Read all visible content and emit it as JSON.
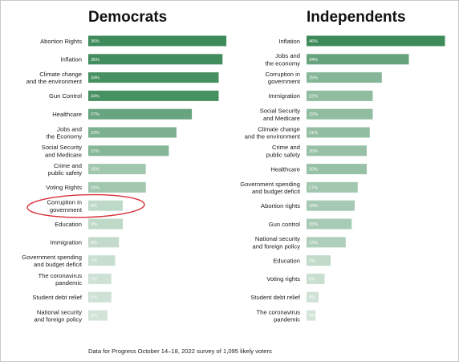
{
  "chart_data": [
    {
      "type": "bar",
      "title": "Democrats",
      "value_format": "percent",
      "xlim": [
        0,
        40
      ],
      "categories": [
        "Abortion Rights",
        "Inflation",
        "Climate change\nand the environment",
        "Gun Control",
        "Healthcare",
        "Jobs and\nthe Economy",
        "Social Security\nand Medicare",
        "Crime and\npublic safety",
        "Voting Rights",
        "Corruption in\ngovernment",
        "Education",
        "Immigration",
        "Government spending\nand budget deficit",
        "The coronavirus\npandemic",
        "Student debt relief",
        "National security\nand foreign policy"
      ],
      "values": [
        36,
        35,
        34,
        34,
        27,
        23,
        21,
        15,
        15,
        9,
        9,
        8,
        7,
        6,
        6,
        5
      ],
      "value_labels": [
        "36%",
        "35%",
        "34%",
        "34%",
        "27%",
        "23%",
        "21%",
        "15%",
        "15%",
        "9%",
        "9%",
        "8%",
        "7%",
        "6%",
        "6%",
        "5%"
      ],
      "highlighted_category": "Corruption in\ngovernment",
      "highlight_color": "#d8323a"
    },
    {
      "type": "bar",
      "title": "Independents",
      "value_format": "percent",
      "xlim": [
        0,
        50
      ],
      "categories": [
        "Inflation",
        "Jobs and\nthe economy",
        "Corruption in\ngovernment",
        "Immigration",
        "Social Security\nand Medicare",
        "Climate change\nand the environment",
        "Crime and\npublic safety",
        "Healthcare",
        "Government spending\nand budget deficit",
        "Abortion rights",
        "Gun control",
        "National security\nand foreign policy",
        "Education",
        "Voting rights",
        "Student debt relief",
        "The coronavirus\npandemic"
      ],
      "values": [
        46,
        34,
        25,
        22,
        22,
        21,
        20,
        20,
        17,
        16,
        15,
        13,
        8,
        6,
        4,
        3
      ],
      "value_labels": [
        "46%",
        "34%",
        "25%",
        "22%",
        "22%",
        "21%",
        "20%",
        "20%",
        "17%",
        "16%",
        "15%",
        "13%",
        "8%",
        "6%",
        "4%",
        "3%"
      ]
    }
  ],
  "colors": {
    "bar_dark": "#3d8a5a",
    "bar_light": "#dfece3"
  },
  "footnote": "Data for Progress October 14–18, 2022 survey of 1,095 likely voters"
}
